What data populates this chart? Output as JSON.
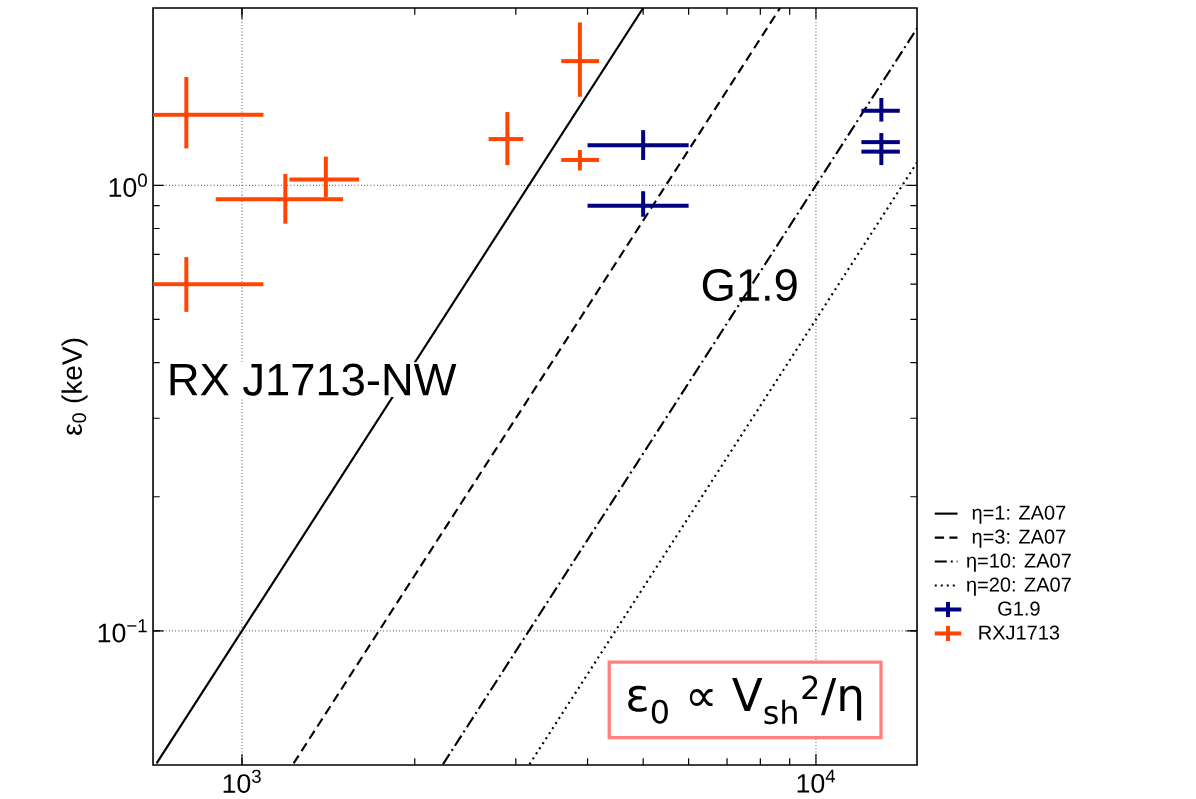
{
  "chart_data": {
    "type": "line",
    "ylabel": "ε$_{0}$ (keV)",
    "log": "xy",
    "grid": true,
    "legend": "bottom right",
    "xlim": [
      700,
      15000
    ],
    "ylim": [
      0.05,
      2.5
    ],
    "xticks": [
      {
        "value": 1000,
        "label": "10$^{3}$"
      },
      {
        "value": 10000,
        "label": "10$^{4}$"
      }
    ],
    "yticks": [
      {
        "value": 0.1,
        "label": "10$^{−1}$"
      },
      {
        "value": 1,
        "label": "10$^{0}$"
      }
    ],
    "annotations": [
      "RX J1713-NW",
      "G1.9",
      "ε$_{0}$ ∝ V$_{sh}$$^{2}$/η"
    ],
    "series": [
      {
        "name": "η=1: ZA07",
        "color": "#000000",
        "line_style": "solid",
        "x": [
          710,
          5000
        ],
        "values": [
          0.0504,
          2.5
        ]
      },
      {
        "name": "η=3: ZA07",
        "color": "#000000",
        "line_style": "dashed",
        "x": [
          1230,
          8660
        ],
        "values": [
          0.0504,
          2.5
        ]
      },
      {
        "name": "η=10: ZA07",
        "color": "#000000",
        "line_style": "dashdot",
        "x": [
          2240,
          15000
        ],
        "values": [
          0.0502,
          2.25
        ]
      },
      {
        "name": "η=20: ZA07",
        "color": "#000000",
        "line_style": "dotted",
        "x": [
          3170,
          15000
        ],
        "values": [
          0.0502,
          1.125
        ]
      },
      {
        "name": "G1.9",
        "type": "scatter",
        "color": "#000080",
        "x": [
          5000,
          5000,
          13000,
          13000,
          13000
        ],
        "values": [
          1.23,
          0.9,
          1.47,
          1.25,
          1.19
        ],
        "xerrors": [
          [
            4000,
            6000
          ],
          [
            4000,
            6000
          ],
          [
            12000,
            14000
          ],
          [
            12000,
            14000
          ],
          [
            12000,
            14000
          ]
        ],
        "errors": [
          [
            1.14,
            1.33
          ],
          [
            0.85,
            0.97
          ],
          [
            1.39,
            1.57
          ],
          null,
          [
            1.11,
            1.31
          ]
        ]
      },
      {
        "name": "RXJ1713",
        "type": "scatter",
        "color": "#ff4500",
        "x": [
          800,
          800,
          1190,
          1400,
          2900,
          3880,
          3880
        ],
        "values": [
          1.44,
          0.6,
          0.93,
          1.03,
          1.27,
          1.9,
          1.14
        ],
        "xerrors": [
          [
            700,
            1090
          ],
          [
            700,
            1090
          ],
          [
            900,
            1500
          ],
          [
            1210,
            1600
          ],
          [
            2690,
            3090
          ],
          [
            3600,
            4190
          ],
          [
            3600,
            4190
          ]
        ],
        "errors": [
          [
            1.21,
            1.75
          ],
          [
            0.52,
            0.69
          ],
          [
            0.82,
            1.06
          ],
          [
            0.94,
            1.16
          ],
          [
            1.11,
            1.46
          ],
          [
            1.58,
            2.32
          ],
          [
            1.08,
            1.2
          ]
        ]
      }
    ]
  }
}
